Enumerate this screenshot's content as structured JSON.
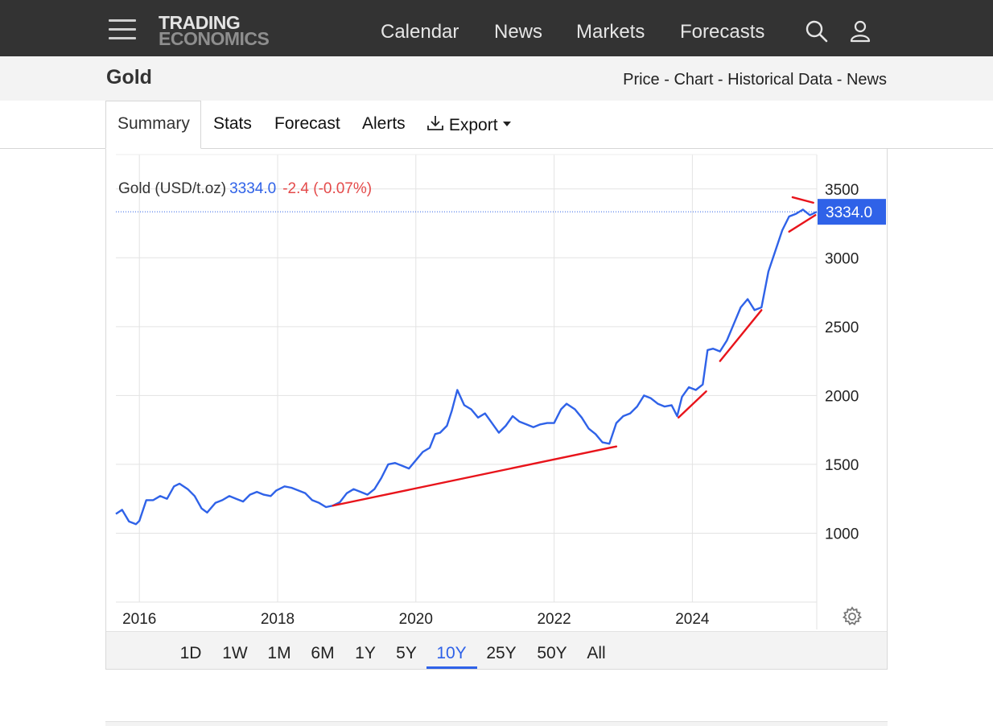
{
  "header": {
    "logo_line1": "TRADING",
    "logo_line2": "ECONOMICS",
    "nav": [
      "Calendar",
      "News",
      "Markets",
      "Forecasts"
    ],
    "icons": [
      "hamburger-menu-icon",
      "search-icon",
      "user-icon"
    ]
  },
  "subheader": {
    "title": "Gold",
    "crumbs": [
      "Price",
      "Chart",
      "Historical Data",
      "News"
    ],
    "separator": " - "
  },
  "tabs": {
    "items": [
      "Summary",
      "Stats",
      "Forecast",
      "Alerts"
    ],
    "export_label": "Export",
    "active": "Summary"
  },
  "legend": {
    "name": "Gold (USD/t.oz)",
    "value": "3334.0",
    "change": "-2.4 (-0.07%)"
  },
  "ranges": {
    "items": [
      "1D",
      "1W",
      "1M",
      "6M",
      "1Y",
      "5Y",
      "10Y",
      "25Y",
      "50Y",
      "All"
    ],
    "active": "10Y"
  },
  "colors": {
    "line": "#2f62e8",
    "trend": "#e8141b",
    "change_negative": "#e44a4a",
    "price_tag": "#2f62e8",
    "topbar": "#333333"
  },
  "chart_data": {
    "type": "line",
    "title": "",
    "xlabel": "",
    "ylabel": "",
    "x_ticks": [
      "2016",
      "2018",
      "2020",
      "2022",
      "2024"
    ],
    "y_ticks": [
      1000,
      1500,
      2000,
      2500,
      3000,
      3500
    ],
    "xlim": [
      2015.66,
      2025.8
    ],
    "ylim": [
      500,
      3750
    ],
    "grid": true,
    "last_value": 3334.0,
    "last_value_label": "3334.0",
    "series": [
      {
        "x": [
          2015.66,
          2015.75,
          2015.85,
          2015.95,
          2016.0,
          2016.1,
          2016.2,
          2016.3,
          2016.4,
          2016.5,
          2016.58,
          2016.7,
          2016.8,
          2016.9,
          2016.98,
          2017.1,
          2017.2,
          2017.3,
          2017.4,
          2017.5,
          2017.6,
          2017.7,
          2017.8,
          2017.9,
          2017.98,
          2018.1,
          2018.2,
          2018.3,
          2018.4,
          2018.5,
          2018.6,
          2018.7,
          2018.8,
          2018.9,
          2019.0,
          2019.1,
          2019.2,
          2019.3,
          2019.4,
          2019.5,
          2019.6,
          2019.7,
          2019.8,
          2019.9,
          2020.0,
          2020.1,
          2020.2,
          2020.28,
          2020.35,
          2020.45,
          2020.52,
          2020.6,
          2020.7,
          2020.8,
          2020.9,
          2021.0,
          2021.1,
          2021.2,
          2021.3,
          2021.4,
          2021.5,
          2021.6,
          2021.7,
          2021.8,
          2021.9,
          2022.0,
          2022.1,
          2022.18,
          2022.3,
          2022.4,
          2022.5,
          2022.6,
          2022.7,
          2022.8,
          2022.9,
          2023.0,
          2023.1,
          2023.2,
          2023.3,
          2023.4,
          2023.5,
          2023.6,
          2023.7,
          2023.78,
          2023.85,
          2023.95,
          2024.05,
          2024.15,
          2024.22,
          2024.3,
          2024.4,
          2024.5,
          2024.6,
          2024.7,
          2024.8,
          2024.9,
          2025.0,
          2025.1,
          2025.2,
          2025.3,
          2025.4,
          2025.5,
          2025.6,
          2025.7,
          2025.8
        ],
        "y": [
          1140,
          1170,
          1085,
          1065,
          1090,
          1240,
          1240,
          1270,
          1250,
          1340,
          1360,
          1320,
          1270,
          1180,
          1150,
          1220,
          1240,
          1270,
          1250,
          1230,
          1280,
          1300,
          1280,
          1270,
          1310,
          1340,
          1330,
          1310,
          1290,
          1240,
          1220,
          1190,
          1200,
          1225,
          1290,
          1320,
          1300,
          1280,
          1320,
          1400,
          1500,
          1510,
          1490,
          1470,
          1530,
          1590,
          1620,
          1720,
          1730,
          1780,
          1890,
          2040,
          1930,
          1900,
          1840,
          1870,
          1800,
          1730,
          1780,
          1850,
          1810,
          1790,
          1770,
          1790,
          1800,
          1800,
          1900,
          1940,
          1900,
          1840,
          1760,
          1720,
          1660,
          1650,
          1800,
          1850,
          1870,
          1920,
          2000,
          1980,
          1940,
          1920,
          1930,
          1850,
          1990,
          2060,
          2040,
          2080,
          2330,
          2340,
          2320,
          2400,
          2520,
          2640,
          2700,
          2620,
          2640,
          2900,
          3050,
          3200,
          3300,
          3320,
          3350,
          3310,
          3334
        ]
      }
    ],
    "trend_lines": [
      [
        [
          2018.8,
          1200
        ],
        [
          2022.9,
          1630
        ]
      ],
      [
        [
          2023.8,
          1840
        ],
        [
          2024.2,
          2030
        ]
      ],
      [
        [
          2024.4,
          2250
        ],
        [
          2025.0,
          2620
        ]
      ],
      [
        [
          2025.4,
          3190
        ],
        [
          2025.78,
          3310
        ]
      ],
      [
        [
          2025.45,
          3440
        ],
        [
          2025.75,
          3400
        ]
      ]
    ]
  }
}
